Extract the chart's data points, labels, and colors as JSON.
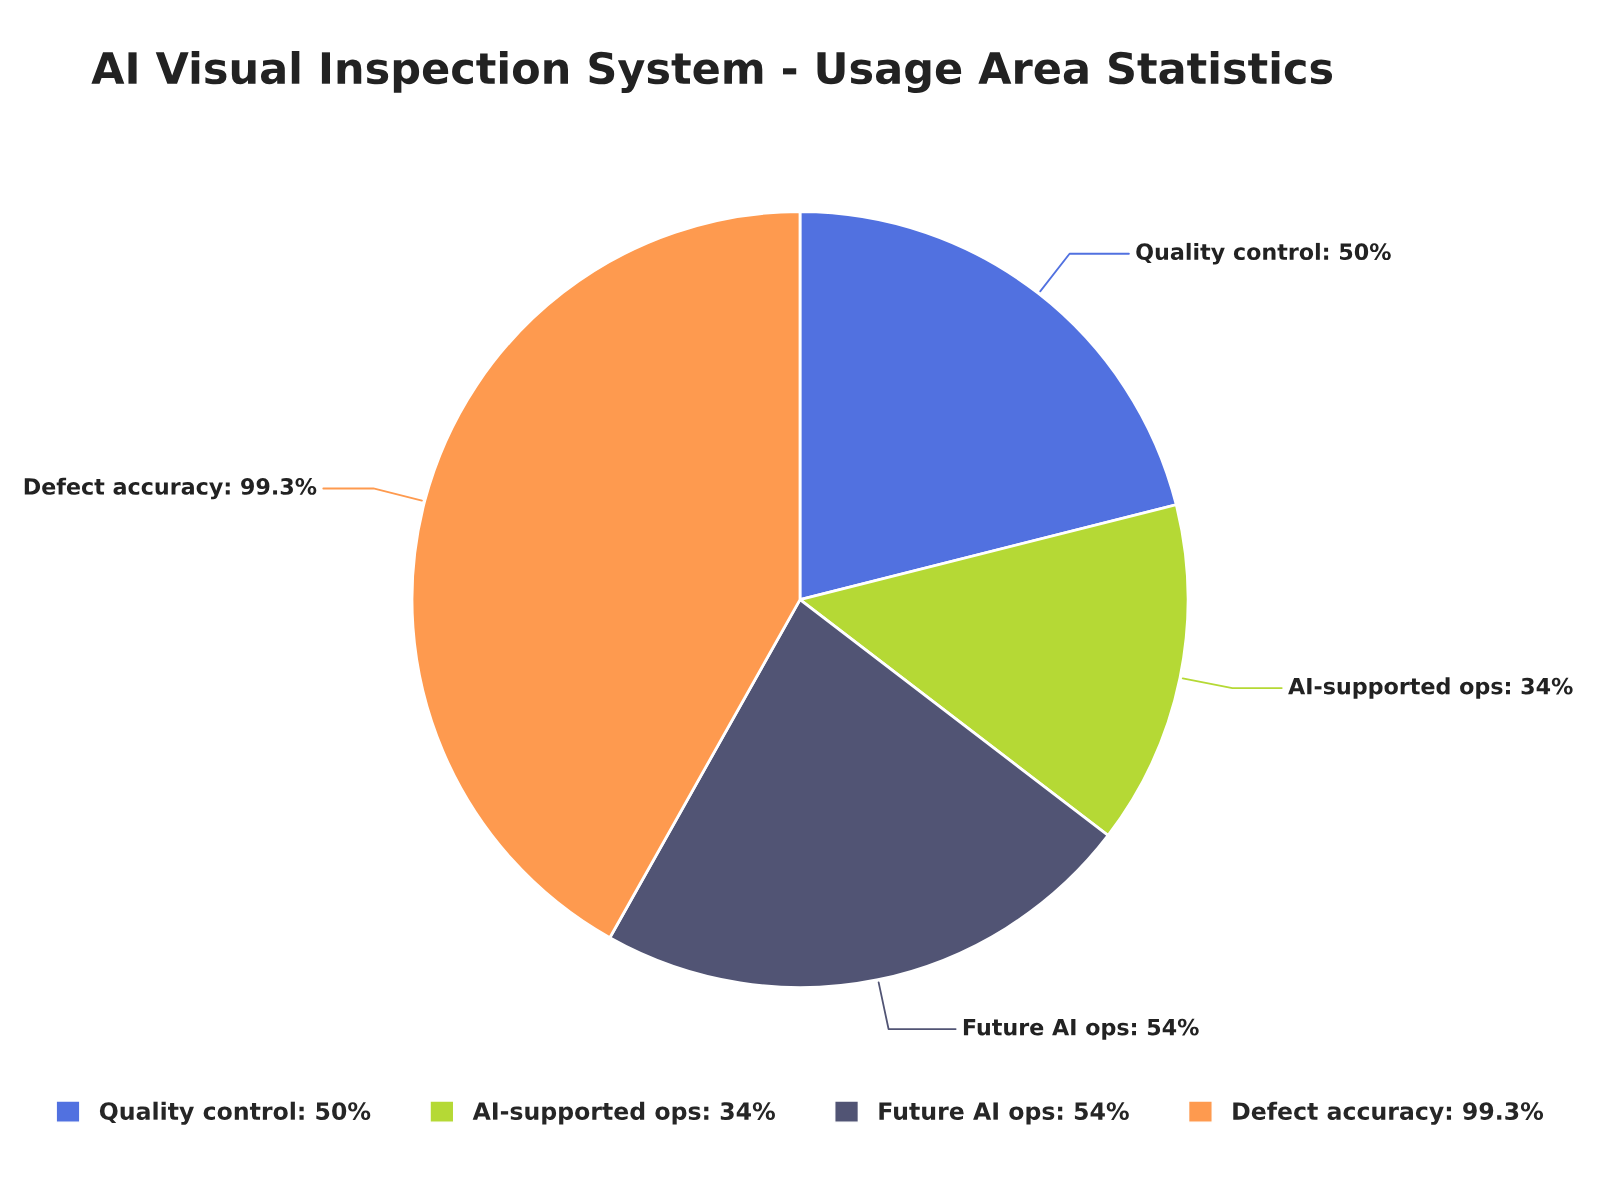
{
  "chart_data": {
    "type": "pie",
    "title": "AI Visual Inspection System - Usage Area Statistics",
    "categories": [
      "Quality control: 50%",
      "AI-supported ops: 34%",
      "Future AI ops: 54%",
      "Defect accuracy: 99.3%"
    ],
    "values": [
      50,
      34,
      54,
      99.3
    ],
    "colors": [
      "#5171e0",
      "#b5d935",
      "#515474",
      "#fe9a4f"
    ],
    "legend": "bottom"
  }
}
